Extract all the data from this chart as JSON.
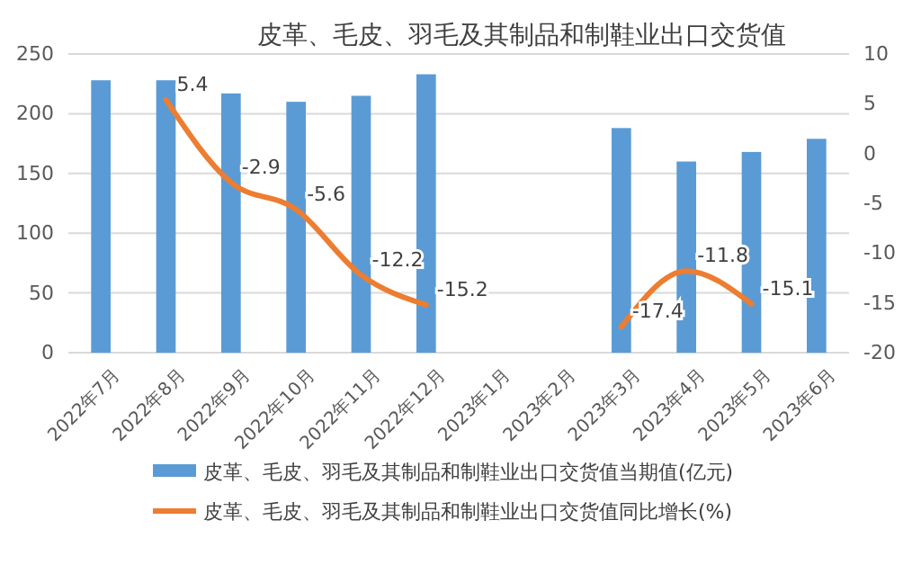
{
  "chart_data": {
    "type": "bar",
    "title": "皮革、毛皮、羽毛及其制品和制鞋业出口交货值",
    "categories": [
      "2022年7月",
      "2022年8月",
      "2022年9月",
      "2022年10月",
      "2022年11月",
      "2022年12月",
      "2023年1月",
      "2023年2月",
      "2023年3月",
      "2023年4月",
      "2023年5月",
      "2023年6月"
    ],
    "series": [
      {
        "name": "皮革、毛皮、羽毛及其制品和制鞋业出口交货值当期值(亿元)",
        "color": "#5b9bd5",
        "values": [
          228,
          228,
          217,
          210,
          215,
          233,
          null,
          null,
          188,
          160,
          168,
          179
        ]
      },
      {
        "name": "皮革、毛皮、羽毛及其制品和制鞋业出口交货值同比增长(%)",
        "type": "line",
        "axis": "y2",
        "color": "#ed7d31",
        "values": [
          null,
          5.4,
          -2.9,
          -5.6,
          -12.2,
          -15.2,
          null,
          null,
          -17.4,
          -11.8,
          -15.1,
          null
        ],
        "value_labels": [
          null,
          "5.4",
          "-2.9",
          "-5.6",
          "-12.2",
          "-15.2",
          null,
          null,
          "-17.4",
          "-11.8",
          "-15.1",
          null
        ]
      }
    ],
    "ylim": [
      0,
      250
    ],
    "yticks": [
      0,
      50,
      100,
      150,
      200,
      250
    ],
    "y2lim": [
      -20,
      10
    ],
    "y2ticks": [
      -20,
      -15,
      -10,
      -5,
      0,
      5,
      10
    ],
    "grid": "y",
    "legend": "bottom",
    "marker": "none",
    "line_style": "solid"
  }
}
